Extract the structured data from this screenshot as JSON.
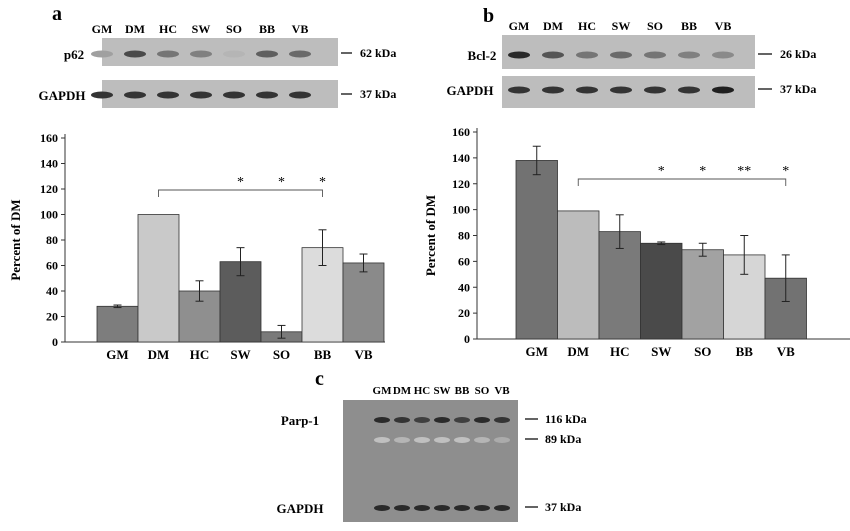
{
  "panels": {
    "a": {
      "label": "a"
    },
    "b": {
      "label": "b"
    },
    "c": {
      "label": "c"
    }
  },
  "blots": {
    "a": {
      "lanes": [
        "GM",
        "DM",
        "HC",
        "SW",
        "SO",
        "BB",
        "VB"
      ],
      "bands": [
        {
          "name": "p62",
          "size": "62 kDa",
          "intensity": [
            0.35,
            0.75,
            0.55,
            0.5,
            0.25,
            0.65,
            0.6
          ]
        },
        {
          "name": "GAPDH",
          "size": "37 kDa",
          "intensity": [
            0.85,
            0.85,
            0.85,
            0.85,
            0.85,
            0.85,
            0.85
          ]
        }
      ]
    },
    "b": {
      "lanes": [
        "GM",
        "DM",
        "HC",
        "SW",
        "SO",
        "BB",
        "VB"
      ],
      "bands": [
        {
          "name": "Bcl-2",
          "size": "26 kDa",
          "intensity": [
            0.9,
            0.7,
            0.55,
            0.6,
            0.55,
            0.5,
            0.45
          ]
        },
        {
          "name": "GAPDH",
          "size": "37 kDa",
          "intensity": [
            0.85,
            0.85,
            0.85,
            0.85,
            0.85,
            0.85,
            0.95
          ]
        }
      ]
    },
    "c": {
      "lanes": [
        "GM",
        "DM",
        "HC",
        "SW",
        "BB",
        "SO",
        "VB"
      ],
      "bands": [
        {
          "name": "Parp-1",
          "size": "116 kDa",
          "intensity": [
            0.9,
            0.85,
            0.8,
            0.9,
            0.8,
            0.9,
            0.85
          ]
        },
        {
          "name": "",
          "size": "89 kDa",
          "intensity": [
            0.2,
            0.25,
            0.2,
            0.2,
            0.2,
            0.25,
            0.3
          ]
        },
        {
          "name": "GAPDH",
          "size": "37 kDa",
          "intensity": [
            0.9,
            0.9,
            0.9,
            0.9,
            0.9,
            0.9,
            0.9
          ]
        }
      ]
    }
  },
  "chart_data": [
    {
      "type": "bar",
      "panel": "a",
      "categories": [
        "GM",
        "DM",
        "HC",
        "SW",
        "SO",
        "BB",
        "VB"
      ],
      "values": [
        28,
        100,
        40,
        63,
        8,
        74,
        62
      ],
      "errors": [
        1,
        0,
        8,
        11,
        5,
        14,
        7
      ],
      "colors": [
        "#7d7d7d",
        "#c9c9c9",
        "#8f8f8f",
        "#5c5c5c",
        "#7a7a7a",
        "#dcdcdc",
        "#8a8a8a"
      ],
      "ylabel": "Percent of DM",
      "ylim": [
        0,
        160
      ],
      "yticks": [
        0,
        20,
        40,
        60,
        80,
        100,
        120,
        140,
        160
      ],
      "bracket": {
        "from": "DM",
        "to": "BB",
        "marks": [
          {
            "at": "SW",
            "text": "*"
          },
          {
            "at": "SO",
            "text": "*"
          },
          {
            "at": "BB",
            "text": "*"
          }
        ]
      }
    },
    {
      "type": "bar",
      "panel": "b",
      "categories": [
        "GM",
        "DM",
        "HC",
        "SW",
        "SO",
        "BB",
        "VB"
      ],
      "values": [
        138,
        99,
        83,
        74,
        69,
        65,
        47
      ],
      "errors": [
        11,
        0,
        13,
        1,
        5,
        15,
        18
      ],
      "colors": [
        "#727272",
        "#bcbcbc",
        "#7a7a7a",
        "#4a4a4a",
        "#a2a2a2",
        "#d6d6d6",
        "#727272"
      ],
      "ylabel": "Percent of DM",
      "ylim": [
        0,
        160
      ],
      "yticks": [
        0,
        20,
        40,
        60,
        80,
        100,
        120,
        140,
        160
      ],
      "bracket": {
        "from": "DM",
        "to": "VB",
        "marks": [
          {
            "at": "SW",
            "text": "*"
          },
          {
            "at": "SO",
            "text": "*"
          },
          {
            "at": "BB",
            "text": "**"
          },
          {
            "at": "VB",
            "text": "*"
          }
        ]
      }
    }
  ]
}
